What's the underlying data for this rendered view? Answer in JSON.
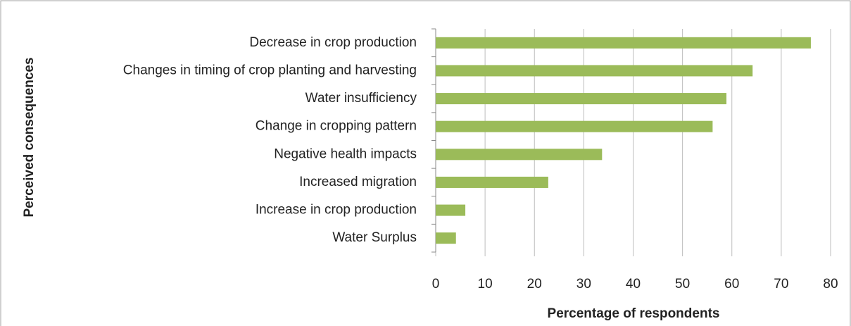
{
  "chart_data": {
    "type": "hbar",
    "x_label": "Percentage of respondents",
    "y_label": "Perceived consequences",
    "categories": [
      "Decrease in crop production",
      "Changes in timing of crop planting and harvesting",
      "Water insufficiency",
      "Change in cropping pattern",
      "Negative health impacts",
      "Increased migration",
      "Increase in crop production",
      "Water Surplus"
    ],
    "values": [
      76,
      64.2,
      58.9,
      56.1,
      33.7,
      22.8,
      6,
      4.1
    ],
    "color": "#9bbb59",
    "xlim": [
      0,
      80
    ],
    "xticks": [
      0,
      10,
      20,
      30,
      40,
      50,
      60,
      70,
      80
    ],
    "grid": true
  }
}
